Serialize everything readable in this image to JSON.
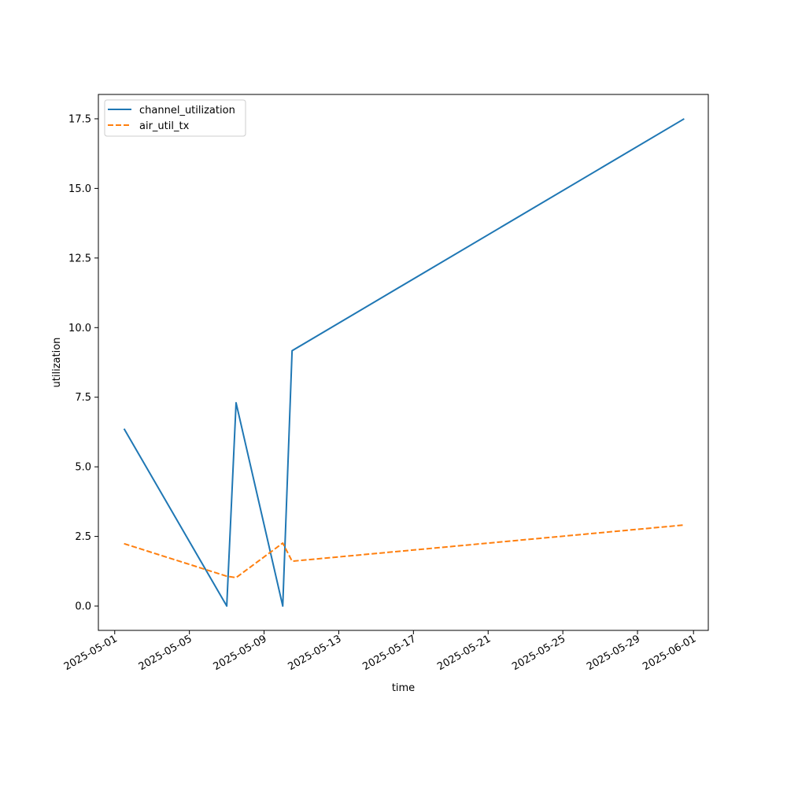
{
  "chart_data": {
    "type": "line",
    "title": "",
    "xlabel": "time",
    "ylabel": "utilization",
    "x_type": "date",
    "xlim": [
      "2025-04-30T03:00",
      "2025-06-01T19:00"
    ],
    "ylim": [
      -0.875,
      18.375
    ],
    "x_ticks": [
      "2025-05-01",
      "2025-05-05",
      "2025-05-09",
      "2025-05-13",
      "2025-05-17",
      "2025-05-21",
      "2025-05-25",
      "2025-05-29",
      "2025-06-01"
    ],
    "x_tick_labels": [
      "2025-05-01",
      "2025-05-05",
      "2025-05-09",
      "2025-05-13",
      "2025-05-17",
      "2025-05-21",
      "2025-05-25",
      "2025-05-29",
      "2025-06-01"
    ],
    "y_ticks": [
      0.0,
      2.5,
      5.0,
      7.5,
      10.0,
      12.5,
      15.0,
      17.5
    ],
    "y_tick_labels": [
      "0.0",
      "2.5",
      "5.0",
      "7.5",
      "10.0",
      "12.5",
      "15.0",
      "17.5"
    ],
    "grid": false,
    "legend": "upper-left",
    "series": [
      {
        "name": "channel_utilization",
        "color": "#1f77b4",
        "dash": "solid",
        "x": [
          "2025-05-01T12:00",
          "2025-05-07T00:00",
          "2025-05-07T12:00",
          "2025-05-10T00:00",
          "2025-05-10T12:00",
          "2025-05-31T12:00"
        ],
        "y": [
          6.37,
          0.0,
          7.3,
          0.0,
          9.17,
          17.5
        ]
      },
      {
        "name": "air_util_tx",
        "color": "#ff7f0e",
        "dash": "dashed",
        "x": [
          "2025-05-01T12:00",
          "2025-05-07T00:00",
          "2025-05-07T12:00",
          "2025-05-10T00:00",
          "2025-05-10T12:00",
          "2025-05-31T12:00"
        ],
        "y": [
          2.24,
          1.07,
          1.02,
          2.26,
          1.61,
          2.91
        ]
      }
    ]
  }
}
